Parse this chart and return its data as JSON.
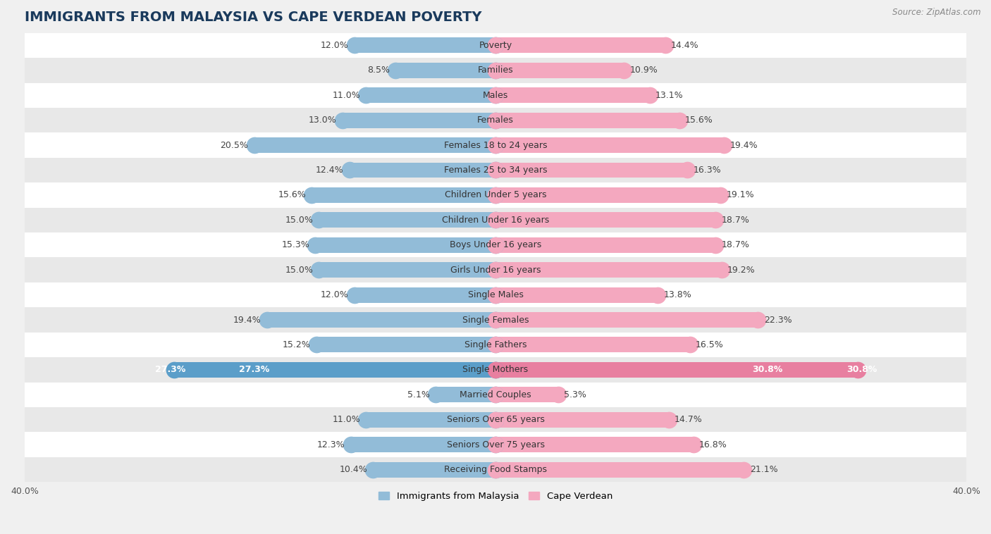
{
  "title": "IMMIGRANTS FROM MALAYSIA VS CAPE VERDEAN POVERTY",
  "source": "Source: ZipAtlas.com",
  "categories": [
    "Poverty",
    "Families",
    "Males",
    "Females",
    "Females 18 to 24 years",
    "Females 25 to 34 years",
    "Children Under 5 years",
    "Children Under 16 years",
    "Boys Under 16 years",
    "Girls Under 16 years",
    "Single Males",
    "Single Females",
    "Single Fathers",
    "Single Mothers",
    "Married Couples",
    "Seniors Over 65 years",
    "Seniors Over 75 years",
    "Receiving Food Stamps"
  ],
  "malaysia_values": [
    12.0,
    8.5,
    11.0,
    13.0,
    20.5,
    12.4,
    15.6,
    15.0,
    15.3,
    15.0,
    12.0,
    19.4,
    15.2,
    27.3,
    5.1,
    11.0,
    12.3,
    10.4
  ],
  "capeverdean_values": [
    14.4,
    10.9,
    13.1,
    15.6,
    19.4,
    16.3,
    19.1,
    18.7,
    18.7,
    19.2,
    13.8,
    22.3,
    16.5,
    30.8,
    5.3,
    14.7,
    16.8,
    21.1
  ],
  "malaysia_color": "#92bcd8",
  "capeverdean_color": "#f4a8bf",
  "single_mothers_malaysia_color": "#5b9ec9",
  "single_mothers_capeverdean_color": "#e87fa0",
  "bar_height": 0.62,
  "xlim_abs": 40,
  "background_color": "#f0f0f0",
  "row_color_odd": "#ffffff",
  "row_color_even": "#e8e8e8",
  "title_fontsize": 14,
  "label_fontsize": 9,
  "value_fontsize": 9,
  "tick_fontsize": 9,
  "source_fontsize": 8.5
}
